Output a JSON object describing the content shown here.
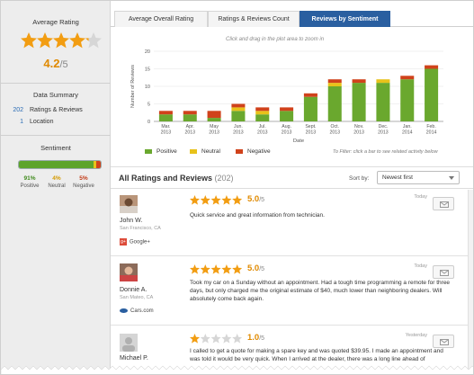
{
  "sidebar": {
    "average_rating_title": "Average Rating",
    "rating_value": "4.2",
    "rating_out_of": "/5",
    "summary_title": "Data Summary",
    "summary": [
      {
        "count": "202",
        "label": "Ratings & Reviews"
      },
      {
        "count": "1",
        "label": "Location"
      }
    ],
    "sentiment_title": "Sentiment",
    "sentiment": [
      {
        "percent": "91%",
        "label": "Positive",
        "value": 91,
        "color": "#5da42b"
      },
      {
        "percent": "4%",
        "label": "Neutral",
        "value": 4,
        "color": "#e8c21a"
      },
      {
        "percent": "5%",
        "label": "Negative",
        "value": 5,
        "color": "#d0421b"
      }
    ]
  },
  "tabs": [
    {
      "label": "Average Overall Rating",
      "active": false
    },
    {
      "label": "Ratings & Reviews Count",
      "active": false
    },
    {
      "label": "Reviews by Sentiment",
      "active": true
    }
  ],
  "chart": {
    "hint": "Click and drag in the plot area to zoom in",
    "filter_hint": "To Filter: click a bar to see related activity below",
    "legend": [
      "Positive",
      "Neutral",
      "Negative"
    ]
  },
  "chart_data": {
    "type": "bar",
    "stacked": true,
    "xlabel": "Date",
    "ylabel": "Number of Reviews",
    "ylim": [
      0,
      20
    ],
    "yticks": [
      0,
      5,
      10,
      15,
      20
    ],
    "grid": true,
    "legend_position": "bottom-left",
    "categories": [
      "Mar. 2013",
      "Apr. 2013",
      "May 2013",
      "Jun. 2013",
      "Jul. 2013",
      "Aug. 2013",
      "Sept. 2013",
      "Oct. 2013",
      "Nov. 2013",
      "Dec. 2013",
      "Jan. 2014",
      "Feb. 2014"
    ],
    "series": [
      {
        "name": "Positive",
        "color": "#6aa82e",
        "values": [
          2,
          2,
          1,
          3,
          2,
          3,
          7,
          10,
          11,
          11,
          12,
          15
        ]
      },
      {
        "name": "Neutral",
        "color": "#e8c21a",
        "values": [
          0,
          0,
          0,
          1,
          1,
          0,
          0,
          1,
          0,
          1,
          0,
          0
        ]
      },
      {
        "name": "Negative",
        "color": "#d0421b",
        "values": [
          1,
          1,
          2,
          1,
          1,
          1,
          1,
          1,
          1,
          0,
          1,
          1
        ]
      }
    ]
  },
  "reviews_header": {
    "title": "All Ratings and Reviews",
    "count": "(202)",
    "sort_label": "Sort by:",
    "sort_value": "Newest first"
  },
  "reviews": [
    {
      "name": "John W.",
      "location": "San Francisco, CA",
      "source": "Google+",
      "rating": 5,
      "score": "5.0",
      "out_of": "/5",
      "date": "Today",
      "text": "Quick service and great information from technician."
    },
    {
      "name": "Donnie A.",
      "location": "San Mateo, CA",
      "source": "Cars.com",
      "rating": 5,
      "score": "5.0",
      "out_of": "/5",
      "date": "Today",
      "text": "Took my car on a Sunday without an appointment. Had a tough time programming a remote for three days, but only charged me the original estimate of $40, much lower than neighboring dealers. Will absolutely come back again."
    },
    {
      "name": "Michael P.",
      "location": "",
      "source": "",
      "rating": 1,
      "score": "1.0",
      "out_of": "/5",
      "date": "Yesterday",
      "text": "I called to get a quote for making a spare key and was quoted $39.95. I made an appointment and was told it would be very quick. When I arrived at the dealer, there was a long line ahead of"
    }
  ]
}
